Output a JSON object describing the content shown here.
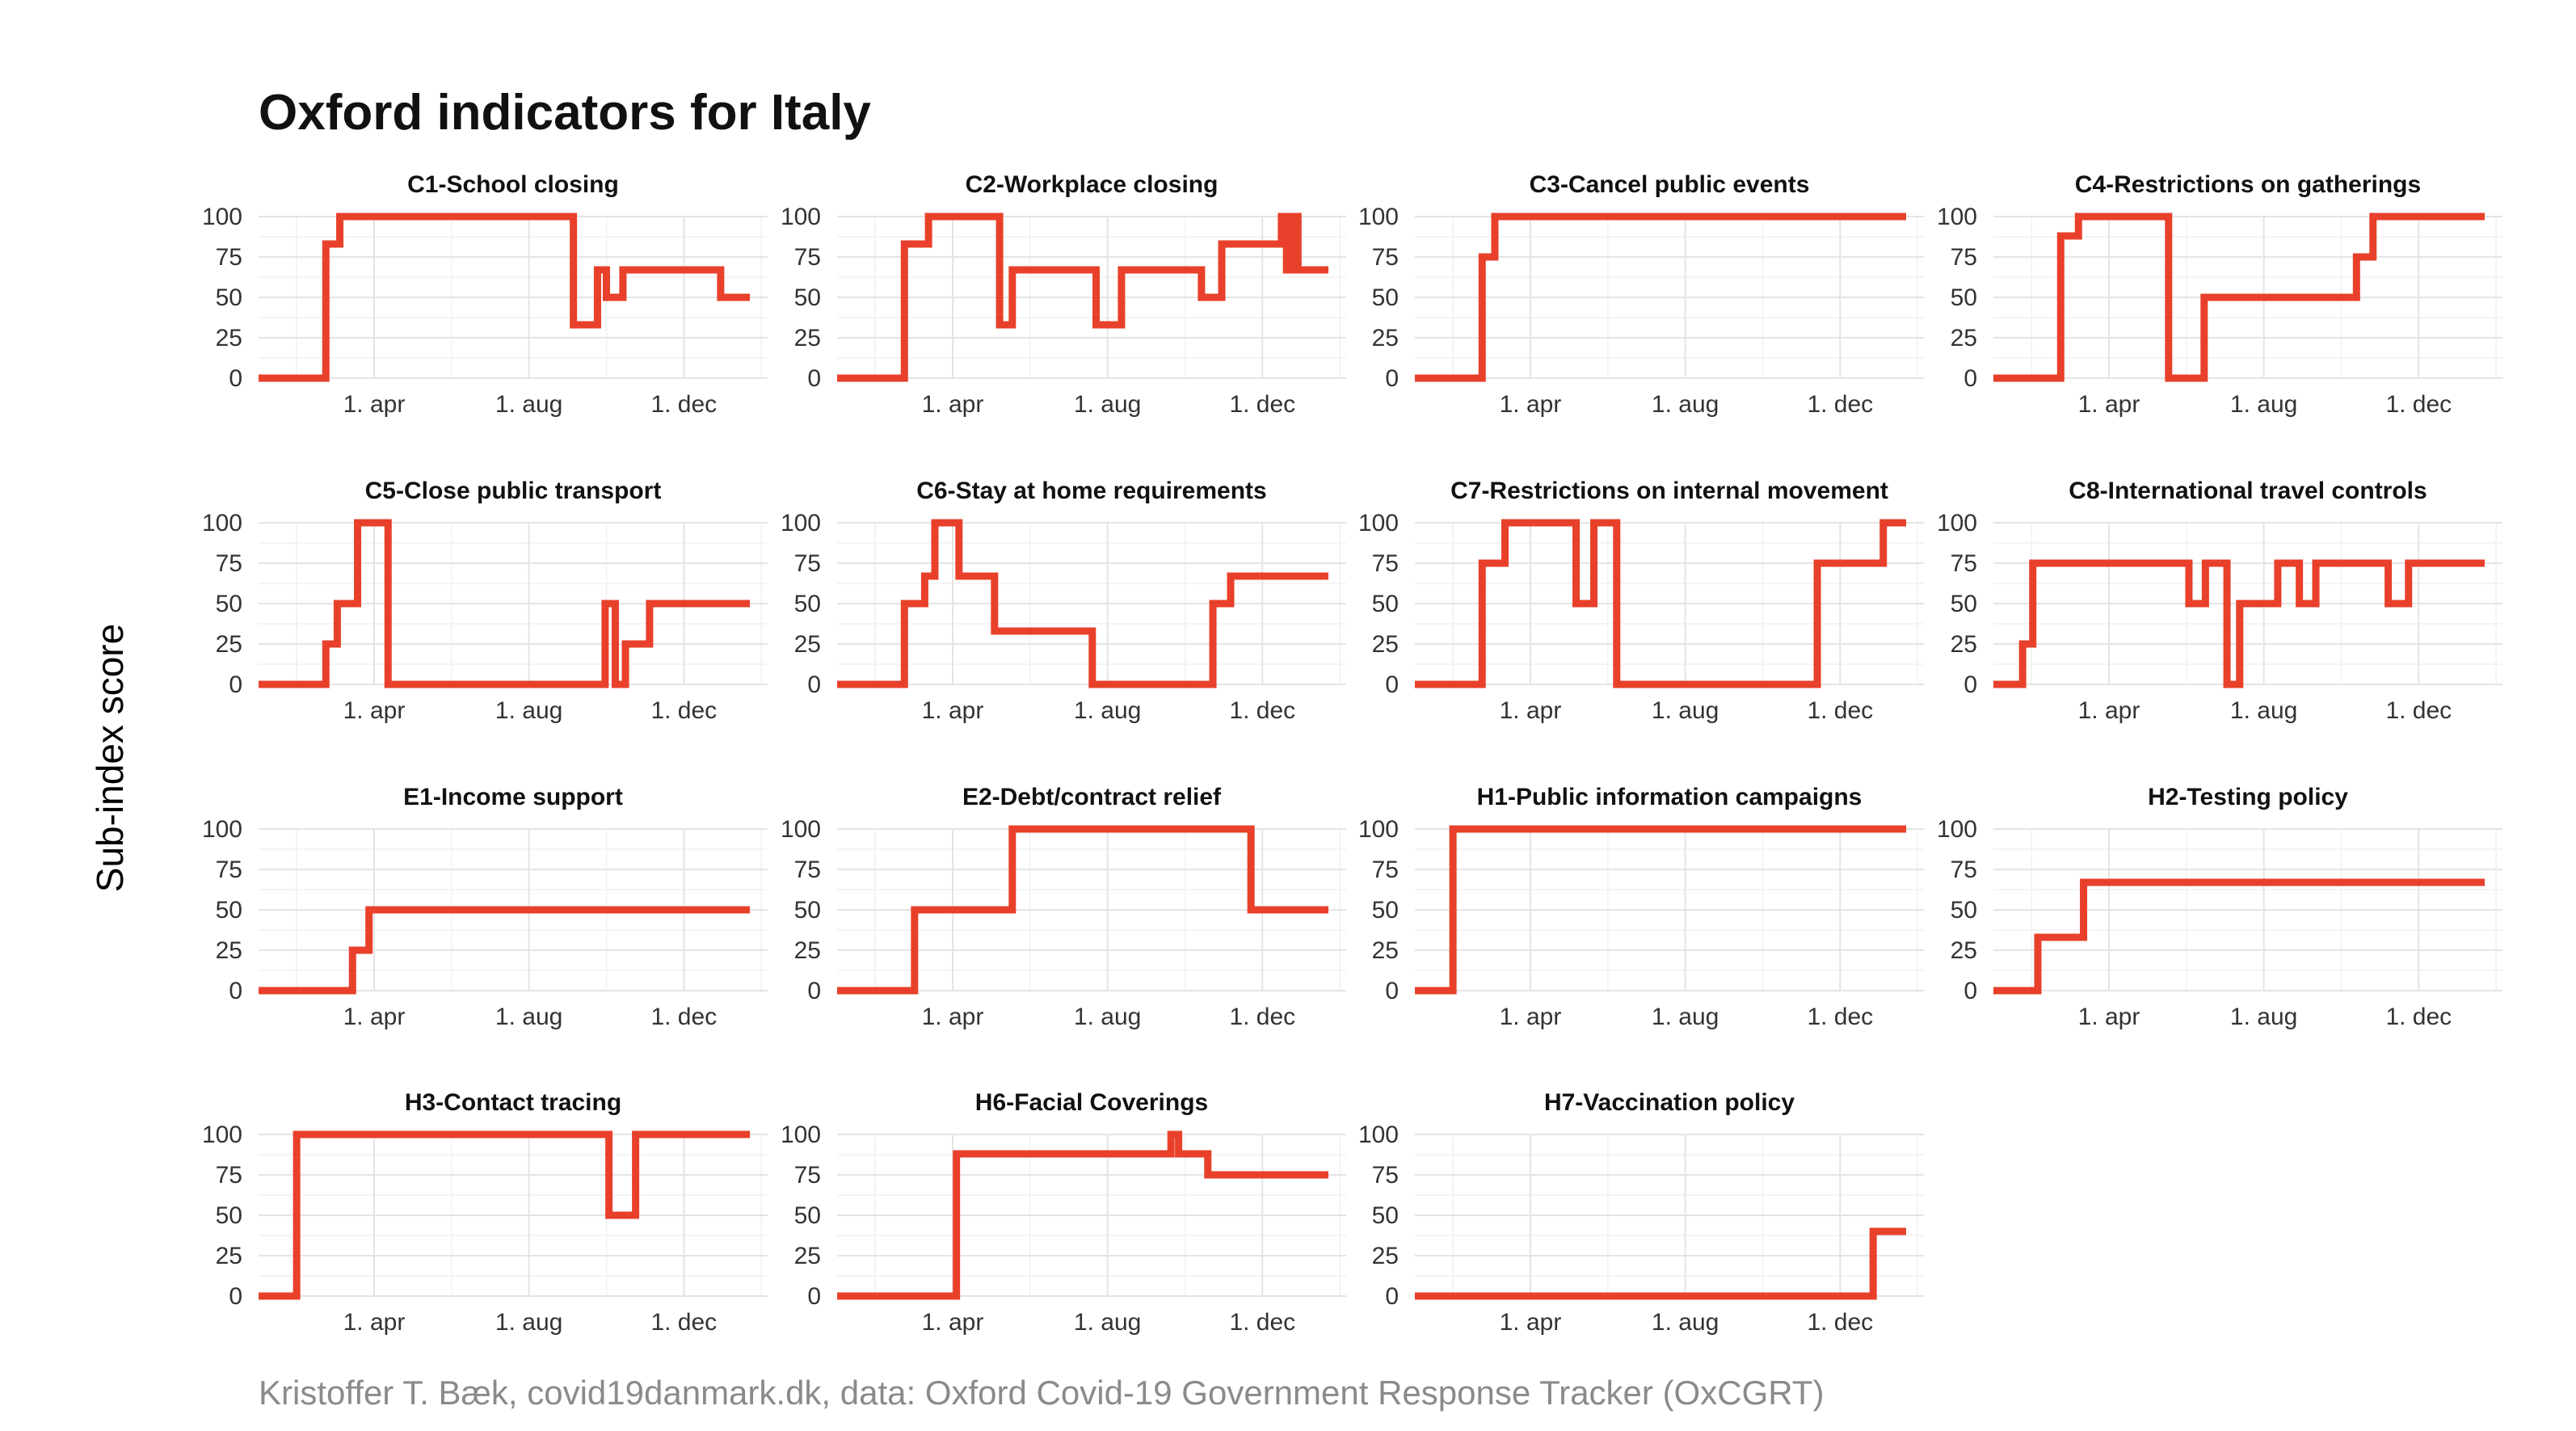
{
  "title": "Oxford indicators for Italy",
  "y_axis_label": "Sub-index score",
  "caption": "Kristoffer T. Bæk, covid19danmark.dk, data: Oxford Covid-19 Government Response Tracker (OxCGRT)",
  "colors": {
    "series": "#E8402A",
    "grid": "#e4e4e4",
    "caption": "#8a8a8a"
  },
  "chart_data": {
    "type": "line",
    "step": true,
    "x_unit": "date",
    "xlim": [
      "2020-01-01",
      "2021-02-05"
    ],
    "x_ticks": [
      {
        "date": "2020-04-01",
        "label": "1. apr"
      },
      {
        "date": "2020-08-01",
        "label": "1. aug"
      },
      {
        "date": "2020-12-01",
        "label": "1. dec"
      }
    ],
    "ylim": [
      0,
      100
    ],
    "y_ticks": [
      0,
      25,
      50,
      75,
      100
    ],
    "grid": true,
    "panels": [
      {
        "title": "C1-School closing",
        "points": [
          [
            "2020-01-01",
            0
          ],
          [
            "2020-02-23",
            83
          ],
          [
            "2020-03-05",
            100
          ],
          [
            "2020-06-30",
            100
          ],
          [
            "2020-09-05",
            33
          ],
          [
            "2020-09-24",
            67
          ],
          [
            "2020-10-01",
            50
          ],
          [
            "2020-10-14",
            67
          ],
          [
            "2020-12-30",
            50
          ],
          [
            "2021-01-22",
            50
          ]
        ]
      },
      {
        "title": "C2-Workplace closing",
        "points": [
          [
            "2020-01-01",
            0
          ],
          [
            "2020-02-23",
            83
          ],
          [
            "2020-03-13",
            100
          ],
          [
            "2020-05-08",
            33
          ],
          [
            "2020-05-18",
            67
          ],
          [
            "2020-07-23",
            33
          ],
          [
            "2020-08-12",
            67
          ],
          [
            "2020-10-14",
            50
          ],
          [
            "2020-10-30",
            83
          ],
          [
            "2020-12-16",
            100
          ],
          [
            "2020-12-20",
            67
          ],
          [
            "2020-12-24",
            100
          ],
          [
            "2020-12-29",
            67
          ],
          [
            "2021-01-22",
            67
          ]
        ]
      },
      {
        "title": "C3-Cancel public events",
        "points": [
          [
            "2020-01-01",
            0
          ],
          [
            "2020-02-23",
            75
          ],
          [
            "2020-03-04",
            100
          ],
          [
            "2021-01-22",
            100
          ]
        ]
      },
      {
        "title": "C4-Restrictions on gatherings",
        "points": [
          [
            "2020-01-01",
            0
          ],
          [
            "2020-02-23",
            88
          ],
          [
            "2020-03-08",
            100
          ],
          [
            "2020-05-18",
            0
          ],
          [
            "2020-06-15",
            50
          ],
          [
            "2020-10-13",
            75
          ],
          [
            "2020-10-26",
            100
          ],
          [
            "2021-01-22",
            100
          ]
        ]
      },
      {
        "title": "C5-Close public transport",
        "points": [
          [
            "2020-01-01",
            0
          ],
          [
            "2020-02-23",
            25
          ],
          [
            "2020-03-03",
            50
          ],
          [
            "2020-03-19",
            100
          ],
          [
            "2020-04-12",
            0
          ],
          [
            "2020-09-30",
            50
          ],
          [
            "2020-10-08",
            0
          ],
          [
            "2020-10-16",
            25
          ],
          [
            "2020-11-04",
            50
          ],
          [
            "2021-01-22",
            50
          ]
        ]
      },
      {
        "title": "C6-Stay at home requirements",
        "points": [
          [
            "2020-01-01",
            0
          ],
          [
            "2020-02-23",
            50
          ],
          [
            "2020-03-10",
            67
          ],
          [
            "2020-03-18",
            100
          ],
          [
            "2020-04-06",
            67
          ],
          [
            "2020-05-04",
            33
          ],
          [
            "2020-07-20",
            0
          ],
          [
            "2020-10-23",
            50
          ],
          [
            "2020-11-06",
            67
          ],
          [
            "2021-01-22",
            67
          ]
        ]
      },
      {
        "title": "C7-Restrictions on internal movement",
        "points": [
          [
            "2020-01-01",
            0
          ],
          [
            "2020-02-23",
            75
          ],
          [
            "2020-03-12",
            100
          ],
          [
            "2020-05-07",
            50
          ],
          [
            "2020-05-21",
            100
          ],
          [
            "2020-06-08",
            0
          ],
          [
            "2020-11-13",
            75
          ],
          [
            "2021-01-04",
            100
          ],
          [
            "2021-01-22",
            100
          ]
        ]
      },
      {
        "title": "C8-International travel controls",
        "points": [
          [
            "2020-01-01",
            0
          ],
          [
            "2020-01-24",
            25
          ],
          [
            "2020-02-01",
            75
          ],
          [
            "2020-06-03",
            50
          ],
          [
            "2020-06-16",
            75
          ],
          [
            "2020-07-03",
            0
          ],
          [
            "2020-07-13",
            50
          ],
          [
            "2020-08-12",
            75
          ],
          [
            "2020-08-29",
            50
          ],
          [
            "2020-09-11",
            75
          ],
          [
            "2020-11-07",
            50
          ],
          [
            "2020-11-23",
            75
          ],
          [
            "2021-01-22",
            75
          ]
        ]
      },
      {
        "title": "E1-Income support",
        "points": [
          [
            "2020-01-01",
            0
          ],
          [
            "2020-03-15",
            25
          ],
          [
            "2020-03-28",
            50
          ],
          [
            "2021-01-22",
            50
          ]
        ]
      },
      {
        "title": "E2-Debt/contract relief",
        "points": [
          [
            "2020-01-01",
            0
          ],
          [
            "2020-03-02",
            50
          ],
          [
            "2020-05-18",
            100
          ],
          [
            "2020-11-22",
            50
          ],
          [
            "2021-01-22",
            50
          ]
        ]
      },
      {
        "title": "H1-Public information campaigns",
        "points": [
          [
            "2020-01-01",
            0
          ],
          [
            "2020-01-31",
            100
          ],
          [
            "2021-01-22",
            100
          ]
        ]
      },
      {
        "title": "H2-Testing policy",
        "points": [
          [
            "2020-01-01",
            0
          ],
          [
            "2020-02-05",
            33
          ],
          [
            "2020-03-12",
            67
          ],
          [
            "2021-01-22",
            67
          ]
        ]
      },
      {
        "title": "H3-Contact tracing",
        "points": [
          [
            "2020-01-01",
            0
          ],
          [
            "2020-01-31",
            100
          ],
          [
            "2020-10-03",
            50
          ],
          [
            "2020-10-24",
            100
          ],
          [
            "2021-01-22",
            100
          ]
        ]
      },
      {
        "title": "H6-Facial Coverings",
        "points": [
          [
            "2020-01-01",
            0
          ],
          [
            "2020-04-04",
            88
          ],
          [
            "2020-09-20",
            100
          ],
          [
            "2020-09-26",
            88
          ],
          [
            "2020-10-19",
            75
          ],
          [
            "2021-01-22",
            75
          ]
        ]
      },
      {
        "title": "H7-Vaccination policy",
        "points": [
          [
            "2020-01-01",
            0
          ],
          [
            "2020-12-27",
            40
          ],
          [
            "2021-01-22",
            40
          ]
        ]
      }
    ]
  }
}
